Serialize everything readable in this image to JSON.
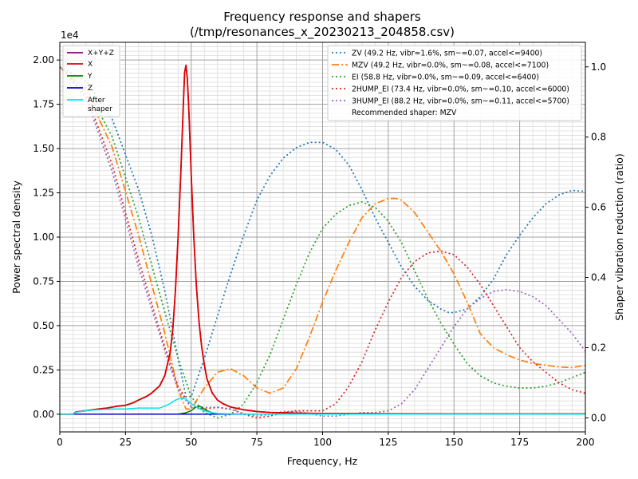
{
  "chart_data": {
    "type": "line",
    "title_line1": "Frequency response and shapers",
    "title_line2": "(/tmp/resonances_x_20230213_204858.csv)",
    "xlabel": "Frequency, Hz",
    "ylabel_left": "Power spectral density",
    "ylabel_right": "Shaper vibration reduction (ratio)",
    "left_axis_multiplier": "1e4",
    "xlim": [
      0,
      200
    ],
    "ylim_left": [
      -0.1,
      2.1
    ],
    "ylim_right": [
      -0.04,
      1.07
    ],
    "grid": true,
    "x_ticks": [
      0,
      25,
      50,
      75,
      100,
      125,
      150,
      175,
      200
    ],
    "y_left_ticks": [
      "0.00",
      "0.25",
      "0.50",
      "0.75",
      "1.00",
      "1.25",
      "1.50",
      "1.75",
      "2.00"
    ],
    "y_right_ticks": [
      "0.0",
      "0.2",
      "0.4",
      "0.6",
      "0.8",
      "1.0"
    ],
    "legend_left_position": "top-left",
    "legend_right_position": "top-right",
    "psd_series": [
      {
        "name": "X+Y+Z",
        "color": "#800080",
        "style": "solid",
        "x": [
          0,
          5,
          6,
          10,
          15,
          18,
          22,
          25,
          28,
          30,
          33,
          35,
          38,
          40,
          42,
          43,
          44,
          45,
          46,
          47,
          47.5,
          48,
          48.5,
          49,
          50,
          51,
          52,
          53,
          54,
          55,
          56,
          58,
          60,
          62,
          65,
          70,
          75,
          80,
          85,
          90,
          100,
          120,
          150,
          200
        ],
        "y": [
          0.0,
          0.0,
          0.012,
          0.02,
          0.03,
          0.035,
          0.045,
          0.05,
          0.065,
          0.08,
          0.1,
          0.12,
          0.16,
          0.22,
          0.35,
          0.48,
          0.7,
          1.0,
          1.35,
          1.75,
          1.93,
          1.97,
          1.9,
          1.75,
          1.35,
          1.0,
          0.72,
          0.52,
          0.38,
          0.28,
          0.2,
          0.12,
          0.08,
          0.06,
          0.04,
          0.025,
          0.015,
          0.01,
          0.008,
          0.006,
          0.004,
          0.003,
          0.002,
          0.002
        ]
      },
      {
        "name": "X",
        "color": "#dd0000",
        "style": "solid",
        "x": [
          0,
          5,
          6,
          10,
          15,
          18,
          22,
          25,
          28,
          30,
          33,
          35,
          38,
          40,
          42,
          43,
          44,
          45,
          46,
          47,
          47.5,
          48,
          48.5,
          49,
          50,
          51,
          52,
          53,
          54,
          55,
          56,
          58,
          60,
          62,
          65,
          70,
          75,
          80,
          85,
          90,
          100,
          120,
          150,
          200
        ],
        "y": [
          0.0,
          0.0,
          0.012,
          0.02,
          0.03,
          0.035,
          0.045,
          0.05,
          0.065,
          0.08,
          0.1,
          0.12,
          0.16,
          0.22,
          0.35,
          0.48,
          0.7,
          1.0,
          1.35,
          1.75,
          1.93,
          1.97,
          1.9,
          1.75,
          1.35,
          1.0,
          0.72,
          0.52,
          0.38,
          0.28,
          0.2,
          0.12,
          0.08,
          0.06,
          0.04,
          0.025,
          0.015,
          0.01,
          0.008,
          0.006,
          0.004,
          0.003,
          0.002,
          0.002
        ]
      },
      {
        "name": "Y",
        "color": "#008000",
        "style": "solid",
        "x": [
          0,
          40,
          45,
          48,
          50,
          51,
          52,
          53,
          54,
          55,
          56,
          58,
          60,
          65,
          200
        ],
        "y": [
          0.0,
          0.0,
          0.0,
          0.008,
          0.02,
          0.032,
          0.04,
          0.045,
          0.04,
          0.03,
          0.02,
          0.008,
          0.003,
          0.0,
          0.0
        ]
      },
      {
        "name": "Z",
        "color": "#0000cc",
        "style": "solid",
        "x": [
          0,
          200
        ],
        "y": [
          0.0,
          0.0
        ]
      },
      {
        "name": "After\nshaper",
        "color": "#00e5ee",
        "style": "solid",
        "x": [
          0,
          5,
          6,
          10,
          15,
          20,
          25,
          30,
          35,
          38,
          40,
          42,
          44,
          46,
          47,
          48,
          50,
          52,
          54,
          56,
          58,
          60,
          65,
          70,
          80,
          100,
          150,
          200
        ],
        "y": [
          0.0,
          0.0,
          0.01,
          0.02,
          0.025,
          0.03,
          0.03,
          0.035,
          0.035,
          0.035,
          0.045,
          0.06,
          0.08,
          0.09,
          0.09,
          0.085,
          0.06,
          0.04,
          0.025,
          0.015,
          0.008,
          0.004,
          0.002,
          0.001,
          0.0,
          0.0,
          0.0,
          0.0
        ]
      }
    ],
    "shaper_series": [
      {
        "name": "ZV (49.2 Hz, vibr=1.6%, sm~=0.07, accel<=9400)",
        "color": "#1f77b4",
        "style": "dotted",
        "x": [
          0,
          10,
          20,
          30,
          35,
          40,
          45,
          48,
          50,
          55,
          60,
          65,
          70,
          75,
          80,
          85,
          90,
          95,
          100,
          105,
          110,
          115,
          120,
          125,
          130,
          135,
          140,
          145,
          148,
          150,
          155,
          160,
          165,
          170,
          175,
          180,
          185,
          190,
          195,
          200
        ],
        "y": [
          1.0,
          0.96,
          0.85,
          0.65,
          0.52,
          0.36,
          0.17,
          0.06,
          0.06,
          0.17,
          0.29,
          0.41,
          0.52,
          0.62,
          0.69,
          0.74,
          0.77,
          0.785,
          0.785,
          0.765,
          0.72,
          0.65,
          0.57,
          0.5,
          0.43,
          0.375,
          0.335,
          0.31,
          0.3,
          0.3,
          0.31,
          0.345,
          0.395,
          0.465,
          0.52,
          0.57,
          0.61,
          0.635,
          0.648,
          0.645
        ]
      },
      {
        "name": "MZV (49.2 Hz, vibr=0.0%, sm~=0.08, accel<=7100)",
        "color": "#ff7f0e",
        "style": "dashdot",
        "x": [
          0,
          10,
          20,
          30,
          40,
          45,
          48,
          50,
          55,
          60,
          65,
          70,
          75,
          80,
          85,
          90,
          95,
          100,
          105,
          110,
          115,
          120,
          125,
          128,
          130,
          135,
          140,
          145,
          150,
          155,
          160,
          165,
          170,
          175,
          180,
          185,
          190,
          195,
          200
        ],
        "y": [
          1.0,
          0.93,
          0.77,
          0.52,
          0.24,
          0.08,
          0.025,
          0.025,
          0.085,
          0.13,
          0.14,
          0.12,
          0.085,
          0.07,
          0.085,
          0.14,
          0.23,
          0.33,
          0.42,
          0.5,
          0.57,
          0.61,
          0.625,
          0.625,
          0.62,
          0.585,
          0.53,
          0.475,
          0.41,
          0.33,
          0.24,
          0.2,
          0.18,
          0.165,
          0.155,
          0.15,
          0.145,
          0.143,
          0.15
        ]
      },
      {
        "name": "EI (58.8 Hz, vibr=0.0%, sm~=0.09, accel<=6400)",
        "color": "#2ca02c",
        "style": "dotted",
        "x": [
          0,
          10,
          20,
          30,
          40,
          45,
          50,
          55,
          60,
          65,
          70,
          75,
          80,
          85,
          90,
          95,
          100,
          105,
          110,
          115,
          120,
          125,
          130,
          135,
          140,
          145,
          150,
          155,
          160,
          165,
          170,
          175,
          180,
          185,
          190,
          195,
          200
        ],
        "y": [
          1.0,
          0.94,
          0.8,
          0.57,
          0.3,
          0.17,
          0.06,
          0.015,
          0.0,
          0.01,
          0.04,
          0.1,
          0.18,
          0.28,
          0.38,
          0.47,
          0.54,
          0.58,
          0.605,
          0.615,
          0.6,
          0.56,
          0.5,
          0.42,
          0.34,
          0.27,
          0.21,
          0.155,
          0.12,
          0.1,
          0.09,
          0.085,
          0.085,
          0.09,
          0.1,
          0.115,
          0.13
        ]
      },
      {
        "name": "2HUMP_EI (73.4 Hz, vibr=0.0%, sm~=0.10, accel<=6000)",
        "color": "#d62728",
        "style": "dotted",
        "x": [
          0,
          10,
          20,
          30,
          40,
          45,
          50,
          55,
          60,
          65,
          70,
          75,
          80,
          85,
          90,
          95,
          100,
          105,
          110,
          115,
          120,
          125,
          130,
          135,
          140,
          145,
          150,
          155,
          160,
          165,
          170,
          175,
          180,
          185,
          190,
          195,
          200
        ],
        "y": [
          1.0,
          0.92,
          0.72,
          0.45,
          0.2,
          0.09,
          0.03,
          0.025,
          0.03,
          0.025,
          0.01,
          0.0,
          0.005,
          0.015,
          0.02,
          0.02,
          0.02,
          0.04,
          0.09,
          0.16,
          0.25,
          0.33,
          0.4,
          0.445,
          0.47,
          0.475,
          0.465,
          0.43,
          0.38,
          0.32,
          0.26,
          0.2,
          0.16,
          0.13,
          0.1,
          0.08,
          0.07
        ]
      },
      {
        "name": "3HUMP_EI (88.2 Hz, vibr=0.0%, sm~=0.11, accel<=5700)",
        "color": "#9467bd",
        "style": "dotted",
        "x": [
          0,
          10,
          20,
          30,
          40,
          45,
          50,
          55,
          60,
          65,
          70,
          75,
          80,
          85,
          90,
          95,
          100,
          105,
          110,
          115,
          120,
          125,
          130,
          135,
          140,
          145,
          150,
          155,
          160,
          165,
          170,
          175,
          180,
          185,
          190,
          195,
          200
        ],
        "y": [
          1.0,
          0.91,
          0.7,
          0.43,
          0.19,
          0.08,
          0.03,
          0.03,
          0.03,
          0.025,
          0.012,
          0.005,
          0.01,
          0.018,
          0.018,
          0.012,
          0.005,
          0.005,
          0.01,
          0.015,
          0.015,
          0.02,
          0.04,
          0.08,
          0.14,
          0.2,
          0.26,
          0.31,
          0.34,
          0.36,
          0.365,
          0.36,
          0.345,
          0.32,
          0.28,
          0.24,
          0.19
        ]
      }
    ],
    "recommended_shaper_text": "Recommended shaper: MZV"
  }
}
